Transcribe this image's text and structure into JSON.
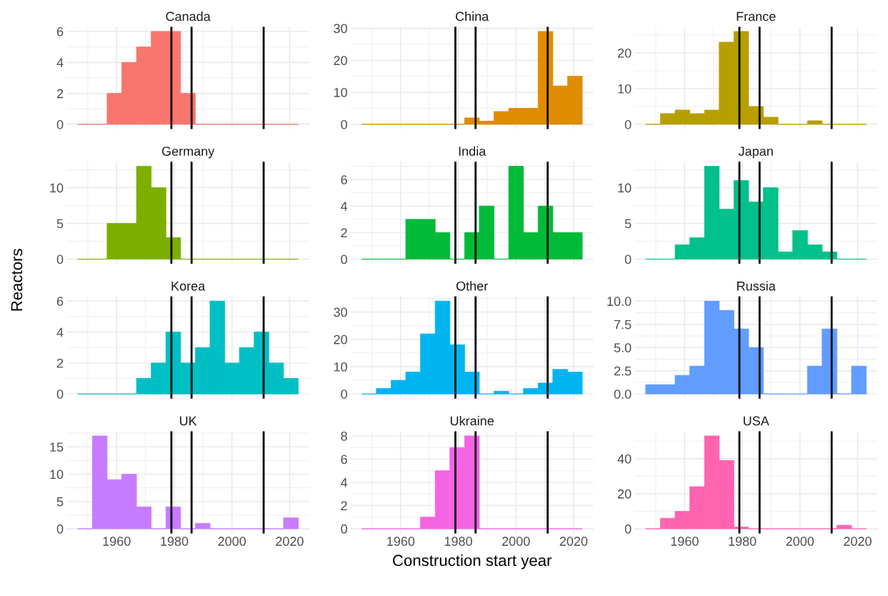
{
  "chart_data": [
    {
      "type": "histogram",
      "title": "Canada",
      "color": "#F8766D",
      "bins": [
        1946.5,
        1951.6,
        1956.7,
        1961.8,
        1966.9,
        1972.0,
        1977.1,
        1982.2,
        1987.3,
        1992.4,
        1997.5,
        2002.6,
        2007.7,
        2012.8,
        2017.9,
        2023.0
      ],
      "values": [
        0,
        0,
        2,
        4,
        5,
        6,
        6,
        2,
        0,
        0,
        0,
        0,
        0,
        0,
        0
      ],
      "xlim": [
        1942.65,
        2026.85
      ],
      "xticks": [
        1960,
        1980,
        2000,
        2020
      ],
      "ylim": [
        -0.3,
        6.3
      ],
      "yticks": [
        0,
        2,
        4,
        6
      ],
      "grid": true,
      "tick_labels": "y",
      "ref_lines": [
        {
          "axis": "x",
          "value": 1979,
          "color": "#000000"
        },
        {
          "axis": "x",
          "value": 1986,
          "color": "#000000"
        },
        {
          "axis": "x",
          "value": 2011,
          "color": "#000000"
        }
      ]
    },
    {
      "type": "histogram",
      "title": "China",
      "color": "#DE8C00",
      "bins": [
        1946.5,
        1951.6,
        1956.7,
        1961.8,
        1966.9,
        1972.0,
        1977.1,
        1982.2,
        1987.3,
        1992.4,
        1997.5,
        2002.6,
        2007.7,
        2012.8,
        2017.9,
        2023.0
      ],
      "values": [
        0,
        0,
        0,
        0,
        0,
        0,
        0,
        2,
        1,
        4,
        5,
        5,
        29,
        12,
        15
      ],
      "xlim": [
        1942.65,
        2026.85
      ],
      "xticks": [
        1960,
        1980,
        2000,
        2020
      ],
      "ylim": [
        -1.45,
        30.45
      ],
      "yticks": [
        0,
        10,
        20,
        30
      ],
      "grid": true,
      "tick_labels": "y",
      "ref_lines": [
        {
          "axis": "x",
          "value": 1979,
          "color": "#000000"
        },
        {
          "axis": "x",
          "value": 1986,
          "color": "#000000"
        },
        {
          "axis": "x",
          "value": 2011,
          "color": "#000000"
        }
      ]
    },
    {
      "type": "histogram",
      "title": "France",
      "color": "#B79F00",
      "bins": [
        1946.5,
        1951.6,
        1956.7,
        1961.8,
        1966.9,
        1972.0,
        1977.1,
        1982.2,
        1987.3,
        1992.4,
        1997.5,
        2002.6,
        2007.7,
        2012.8,
        2017.9,
        2023.0
      ],
      "values": [
        0,
        3,
        4,
        3,
        4,
        23,
        26,
        5,
        2,
        0,
        0,
        1,
        0,
        0,
        0
      ],
      "xlim": [
        1942.65,
        2026.85
      ],
      "xticks": [
        1960,
        1980,
        2000,
        2020
      ],
      "ylim": [
        -1.3,
        27.3
      ],
      "yticks": [
        0,
        10,
        20
      ],
      "grid": true,
      "tick_labels": "y",
      "ref_lines": [
        {
          "axis": "x",
          "value": 1979,
          "color": "#000000"
        },
        {
          "axis": "x",
          "value": 1986,
          "color": "#000000"
        },
        {
          "axis": "x",
          "value": 2011,
          "color": "#000000"
        }
      ]
    },
    {
      "type": "histogram",
      "title": "Germany",
      "ylabel": "Reactors",
      "color": "#7CAE00",
      "bins": [
        1946.5,
        1951.6,
        1956.7,
        1961.8,
        1966.9,
        1972.0,
        1977.1,
        1982.2,
        1987.3,
        1992.4,
        1997.5,
        2002.6,
        2007.7,
        2012.8,
        2017.9,
        2023.0
      ],
      "values": [
        0,
        0,
        5,
        5,
        13,
        10,
        3,
        0,
        0,
        0,
        0,
        0,
        0,
        0,
        0
      ],
      "xlim": [
        1942.65,
        2026.85
      ],
      "xticks": [
        1960,
        1980,
        2000,
        2020
      ],
      "ylim": [
        -0.65,
        13.65
      ],
      "yticks": [
        0,
        5,
        10
      ],
      "grid": true,
      "tick_labels": "y",
      "ref_lines": [
        {
          "axis": "x",
          "value": 1979,
          "color": "#000000"
        },
        {
          "axis": "x",
          "value": 1986,
          "color": "#000000"
        },
        {
          "axis": "x",
          "value": 2011,
          "color": "#000000"
        }
      ]
    },
    {
      "type": "histogram",
      "title": "India",
      "color": "#00BA38",
      "bins": [
        1946.5,
        1951.6,
        1956.7,
        1961.8,
        1966.9,
        1972.0,
        1977.1,
        1982.2,
        1987.3,
        1992.4,
        1997.5,
        2002.6,
        2007.7,
        2012.8,
        2017.9,
        2023.0
      ],
      "values": [
        0,
        0,
        0,
        3,
        3,
        2,
        0,
        2,
        4,
        0,
        7,
        2,
        4,
        2,
        2
      ],
      "xlim": [
        1942.65,
        2026.85
      ],
      "xticks": [
        1960,
        1980,
        2000,
        2020
      ],
      "ylim": [
        -0.35,
        7.35
      ],
      "yticks": [
        0,
        2,
        4,
        6
      ],
      "grid": true,
      "tick_labels": "y",
      "ref_lines": [
        {
          "axis": "x",
          "value": 1979,
          "color": "#000000"
        },
        {
          "axis": "x",
          "value": 1986,
          "color": "#000000"
        },
        {
          "axis": "x",
          "value": 2011,
          "color": "#000000"
        }
      ]
    },
    {
      "type": "histogram",
      "title": "Japan",
      "color": "#00C08B",
      "bins": [
        1946.5,
        1951.6,
        1956.7,
        1961.8,
        1966.9,
        1972.0,
        1977.1,
        1982.2,
        1987.3,
        1992.4,
        1997.5,
        2002.6,
        2007.7,
        2012.8,
        2017.9,
        2023.0
      ],
      "values": [
        0,
        0,
        2,
        3,
        13,
        7,
        11,
        8,
        10,
        1,
        4,
        2,
        1,
        0,
        0
      ],
      "xlim": [
        1942.65,
        2026.85
      ],
      "xticks": [
        1960,
        1980,
        2000,
        2020
      ],
      "ylim": [
        -0.65,
        13.65
      ],
      "yticks": [
        0,
        5,
        10
      ],
      "grid": true,
      "tick_labels": "y",
      "ref_lines": [
        {
          "axis": "x",
          "value": 1979,
          "color": "#000000"
        },
        {
          "axis": "x",
          "value": 1986,
          "color": "#000000"
        },
        {
          "axis": "x",
          "value": 2011,
          "color": "#000000"
        }
      ]
    },
    {
      "type": "histogram",
      "title": "Korea",
      "color": "#00BFC4",
      "bins": [
        1946.5,
        1951.6,
        1956.7,
        1961.8,
        1966.9,
        1972.0,
        1977.1,
        1982.2,
        1987.3,
        1992.4,
        1997.5,
        2002.6,
        2007.7,
        2012.8,
        2017.9,
        2023.0
      ],
      "values": [
        0,
        0,
        0,
        0,
        1,
        2,
        4,
        2,
        3,
        6,
        2,
        3,
        4,
        2,
        1
      ],
      "xlim": [
        1942.65,
        2026.85
      ],
      "xticks": [
        1960,
        1980,
        2000,
        2020
      ],
      "ylim": [
        -0.3,
        6.3
      ],
      "yticks": [
        0,
        2,
        4,
        6
      ],
      "grid": true,
      "tick_labels": "y",
      "ref_lines": [
        {
          "axis": "x",
          "value": 1979,
          "color": "#000000"
        },
        {
          "axis": "x",
          "value": 1986,
          "color": "#000000"
        },
        {
          "axis": "x",
          "value": 2011,
          "color": "#000000"
        }
      ]
    },
    {
      "type": "histogram",
      "title": "Other",
      "color": "#00B4F0",
      "bins": [
        1946.5,
        1951.6,
        1956.7,
        1961.8,
        1966.9,
        1972.0,
        1977.1,
        1982.2,
        1987.3,
        1992.4,
        1997.5,
        2002.6,
        2007.7,
        2012.8,
        2017.9,
        2023.0
      ],
      "values": [
        0,
        2,
        5,
        8,
        22,
        34,
        18,
        8,
        0,
        1,
        0,
        2,
        4,
        9,
        8
      ],
      "xlim": [
        1942.65,
        2026.85
      ],
      "xticks": [
        1960,
        1980,
        2000,
        2020
      ],
      "ylim": [
        -1.7,
        35.7
      ],
      "yticks": [
        0,
        10,
        20,
        30
      ],
      "grid": true,
      "tick_labels": "y",
      "ref_lines": [
        {
          "axis": "x",
          "value": 1979,
          "color": "#000000"
        },
        {
          "axis": "x",
          "value": 1986,
          "color": "#000000"
        },
        {
          "axis": "x",
          "value": 2011,
          "color": "#000000"
        }
      ]
    },
    {
      "type": "histogram",
      "title": "Russia",
      "color": "#619CFF",
      "bins": [
        1946.5,
        1951.6,
        1956.7,
        1961.8,
        1966.9,
        1972.0,
        1977.1,
        1982.2,
        1987.3,
        1992.4,
        1997.5,
        2002.6,
        2007.7,
        2012.8,
        2017.9,
        2023.0
      ],
      "values": [
        1,
        1,
        2,
        3,
        10,
        9,
        7,
        5,
        0,
        0,
        0,
        3,
        7,
        0,
        3
      ],
      "xlim": [
        1942.65,
        2026.85
      ],
      "xticks": [
        1960,
        1980,
        2000,
        2020
      ],
      "ylim": [
        -0.5,
        10.5
      ],
      "yticks": [
        {
          "value": 0,
          "label": "0.0"
        },
        {
          "value": 2.5,
          "label": "2.5"
        },
        {
          "value": 5,
          "label": "5.0"
        },
        {
          "value": 7.5,
          "label": "7.5"
        },
        {
          "value": 10,
          "label": "10.0"
        }
      ],
      "grid": true,
      "tick_labels": "y",
      "ref_lines": [
        {
          "axis": "x",
          "value": 1979,
          "color": "#000000"
        },
        {
          "axis": "x",
          "value": 1986,
          "color": "#000000"
        },
        {
          "axis": "x",
          "value": 2011,
          "color": "#000000"
        }
      ]
    },
    {
      "type": "histogram",
      "title": "UK",
      "color": "#C77CFF",
      "bins": [
        1946.5,
        1951.6,
        1956.7,
        1961.8,
        1966.9,
        1972.0,
        1977.1,
        1982.2,
        1987.3,
        1992.4,
        1997.5,
        2002.6,
        2007.7,
        2012.8,
        2017.9,
        2023.0
      ],
      "values": [
        0,
        17,
        9,
        10,
        4,
        0,
        4,
        0,
        1,
        0,
        0,
        0,
        0,
        0,
        2
      ],
      "xlim": [
        1942.65,
        2026.85
      ],
      "xticks": [
        1960,
        1980,
        2000,
        2020
      ],
      "ylim": [
        -0.85,
        17.85
      ],
      "yticks": [
        0,
        5,
        10,
        15
      ],
      "grid": true,
      "ref_lines": [
        {
          "axis": "x",
          "value": 1979,
          "color": "#000000"
        },
        {
          "axis": "x",
          "value": 1986,
          "color": "#000000"
        },
        {
          "axis": "x",
          "value": 2011,
          "color": "#000000"
        }
      ]
    },
    {
      "type": "histogram",
      "title": "Ukraine",
      "xlabel": "Construction start year",
      "color": "#F564E3",
      "bins": [
        1946.5,
        1951.6,
        1956.7,
        1961.8,
        1966.9,
        1972.0,
        1977.1,
        1982.2,
        1987.3,
        1992.4,
        1997.5,
        2002.6,
        2007.7,
        2012.8,
        2017.9,
        2023.0
      ],
      "values": [
        0,
        0,
        0,
        0,
        1,
        5,
        7,
        8,
        0,
        0,
        0,
        0,
        0,
        0,
        0
      ],
      "xlim": [
        1942.65,
        2026.85
      ],
      "xticks": [
        1960,
        1980,
        2000,
        2020
      ],
      "ylim": [
        -0.4,
        8.4
      ],
      "yticks": [
        0,
        2,
        4,
        6,
        8
      ],
      "grid": true,
      "ref_lines": [
        {
          "axis": "x",
          "value": 1979,
          "color": "#000000"
        },
        {
          "axis": "x",
          "value": 1986,
          "color": "#000000"
        },
        {
          "axis": "x",
          "value": 2011,
          "color": "#000000"
        }
      ]
    },
    {
      "type": "histogram",
      "title": "USA",
      "color": "#FF64B0",
      "bins": [
        1946.5,
        1951.6,
        1956.7,
        1961.8,
        1966.9,
        1972.0,
        1977.1,
        1982.2,
        1987.3,
        1992.4,
        1997.5,
        2002.6,
        2007.7,
        2012.8,
        2017.9,
        2023.0
      ],
      "values": [
        0,
        6,
        10,
        24,
        53,
        39,
        1,
        0,
        0,
        0,
        0,
        0,
        0,
        2,
        0
      ],
      "xlim": [
        1942.65,
        2026.85
      ],
      "xticks": [
        1960,
        1980,
        2000,
        2020
      ],
      "ylim": [
        -2.65,
        55.65
      ],
      "yticks": [
        0,
        20,
        40
      ],
      "grid": true,
      "ref_lines": [
        {
          "axis": "x",
          "value": 1979,
          "color": "#000000"
        },
        {
          "axis": "x",
          "value": 1986,
          "color": "#000000"
        },
        {
          "axis": "x",
          "value": 2011,
          "color": "#000000"
        }
      ]
    }
  ]
}
